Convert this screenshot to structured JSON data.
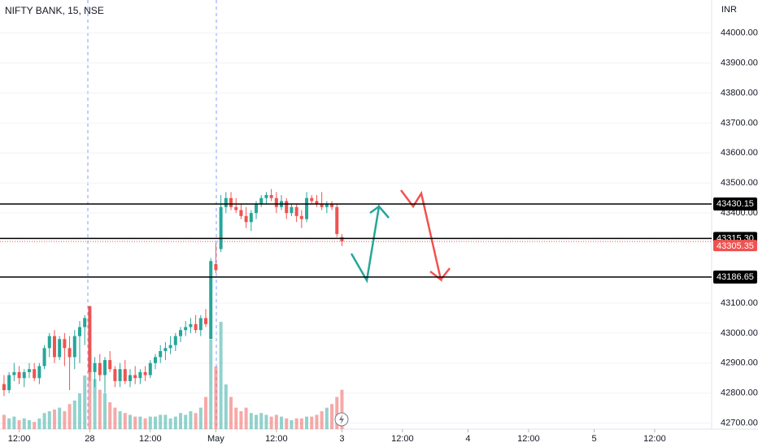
{
  "chart_data": {
    "type": "candlestick",
    "title": "NIFTY BANK, 15, NSE",
    "currency": "INR",
    "up_color": "#26a69a",
    "down_color": "#ef5350",
    "open": [
      42830,
      42810,
      42860,
      42870,
      42850,
      42870,
      42880,
      42850,
      42890,
      42950,
      42990,
      42920,
      42980,
      42950,
      42920,
      42990,
      43020,
      43090,
      42870,
      42900,
      42860,
      42910,
      42880,
      42840,
      42880,
      42840,
      42860,
      42850,
      42870,
      42860,
      42900,
      42920,
      42940,
      42950,
      42960,
      42990,
      43010,
      43020,
      43030,
      43010,
      43050,
      42980,
      43230,
      43280,
      43420,
      43450,
      43420,
      43410,
      43390,
      43370,
      43400,
      43430,
      43450,
      43460,
      43450,
      43420,
      43440,
      43400,
      43420,
      43390,
      43380,
      43450,
      43440,
      43430,
      43420,
      43430,
      43420,
      43320
    ],
    "high": [
      42860,
      42870,
      42900,
      42890,
      42880,
      42900,
      42900,
      42900,
      42960,
      43000,
      43010,
      42990,
      43000,
      42990,
      43010,
      43040,
      43060,
      43090,
      42920,
      42930,
      42920,
      42940,
      42890,
      42900,
      42910,
      42880,
      42890,
      42880,
      42890,
      42910,
      42930,
      42960,
      42970,
      42990,
      43000,
      43020,
      43040,
      43050,
      43060,
      43060,
      43080,
      43250,
      43300,
      43460,
      43470,
      43470,
      43450,
      43430,
      43420,
      43410,
      43440,
      43460,
      43470,
      43480,
      43470,
      43460,
      43450,
      43430,
      43430,
      43410,
      43470,
      43460,
      43460,
      43470,
      43440,
      43440,
      43430,
      43330
    ],
    "low": [
      42790,
      42800,
      42840,
      42830,
      42820,
      42850,
      42840,
      42830,
      42880,
      42920,
      42900,
      42910,
      42890,
      42810,
      42880,
      42900,
      42960,
      42840,
      42820,
      42840,
      42800,
      42870,
      42820,
      42820,
      42830,
      42820,
      42830,
      42830,
      42840,
      42850,
      42880,
      42900,
      42910,
      42930,
      42940,
      42970,
      42990,
      43000,
      43000,
      42990,
      43020,
      42980,
      43200,
      43270,
      43400,
      43410,
      43400,
      43380,
      43350,
      43340,
      43380,
      43420,
      43430,
      43440,
      43400,
      43410,
      43380,
      43390,
      43370,
      43350,
      43370,
      43430,
      43420,
      43410,
      43400,
      43410,
      43320,
      43290
    ],
    "close": [
      42810,
      42860,
      42870,
      42850,
      42870,
      42880,
      42850,
      42890,
      42950,
      42990,
      42920,
      42980,
      42950,
      42920,
      42990,
      43020,
      43050,
      42870,
      42900,
      42860,
      42910,
      42880,
      42840,
      42880,
      42840,
      42860,
      42850,
      42870,
      42860,
      42900,
      42920,
      42940,
      42950,
      42960,
      42990,
      43010,
      43020,
      43030,
      43010,
      43050,
      43030,
      43240,
      43210,
      43420,
      43450,
      43420,
      43410,
      43390,
      43370,
      43400,
      43430,
      43450,
      43460,
      43450,
      43420,
      43440,
      43400,
      43420,
      43390,
      43380,
      43450,
      43440,
      43430,
      43420,
      43430,
      43420,
      43330,
      43305.35
    ],
    "volume": [
      8,
      6,
      7,
      5,
      6,
      5,
      4,
      6,
      9,
      10,
      11,
      12,
      10,
      14,
      16,
      20,
      30,
      45,
      28,
      22,
      20,
      15,
      12,
      10,
      9,
      8,
      7,
      7,
      6,
      7,
      7,
      8,
      8,
      6,
      7,
      9,
      8,
      10,
      9,
      12,
      18,
      50,
      35,
      60,
      25,
      18,
      12,
      10,
      12,
      9,
      8,
      9,
      8,
      7,
      8,
      7,
      6,
      5,
      6,
      6,
      7,
      7,
      8,
      10,
      12,
      14,
      18,
      22
    ],
    "ylim": [
      42680,
      44110
    ],
    "yticks": [
      {
        "value": 42700,
        "label": "42700.00"
      },
      {
        "value": 42800,
        "label": "42800.00"
      },
      {
        "value": 42900,
        "label": "42900.00"
      },
      {
        "value": 43000,
        "label": "43000.00"
      },
      {
        "value": 43100,
        "label": "43100.00"
      },
      {
        "value": 43400,
        "label": "43400.00"
      },
      {
        "value": 43500,
        "label": "43500.00"
      },
      {
        "value": 43600,
        "label": "43600.00"
      },
      {
        "value": 43700,
        "label": "43700.00"
      },
      {
        "value": 43800,
        "label": "43800.00"
      },
      {
        "value": 43900,
        "label": "43900.00"
      },
      {
        "value": 44000,
        "label": "44000.00"
      }
    ],
    "xlim": [
      -0.8,
      140.3
    ],
    "xticks": [
      {
        "value": 3,
        "label": "12:00"
      },
      {
        "value": 17,
        "label": "28"
      },
      {
        "value": 29,
        "label": "12:00"
      },
      {
        "value": 42,
        "label": "May"
      },
      {
        "value": 54,
        "label": "12:00"
      },
      {
        "value": 67,
        "label": "3"
      },
      {
        "value": 79,
        "label": "12:00"
      },
      {
        "value": 92,
        "label": "4"
      },
      {
        "value": 104,
        "label": "12:00"
      },
      {
        "value": 117,
        "label": "5"
      },
      {
        "value": 129,
        "label": "12:00"
      }
    ],
    "levels": [
      {
        "value": 43430.15,
        "label": "43430.15"
      },
      {
        "value": 43315.3,
        "label": "43315.30"
      },
      {
        "value": 43186.65,
        "label": "43186.65"
      }
    ],
    "last_price": {
      "value": 43305.35,
      "label": "43305.35"
    }
  }
}
